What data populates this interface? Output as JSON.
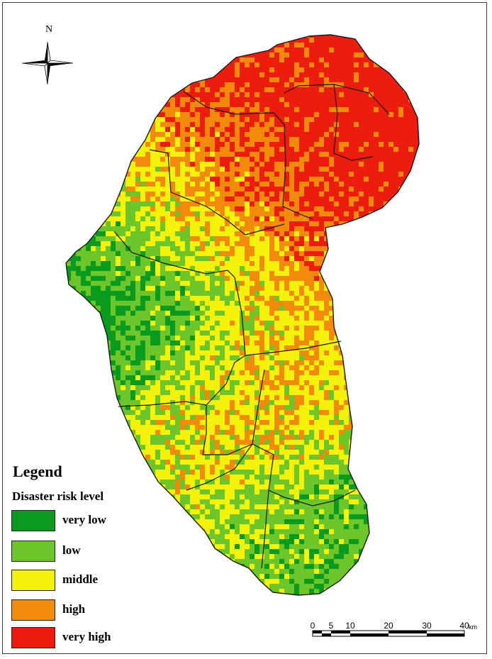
{
  "map": {
    "compass_label": "N",
    "legend": {
      "title": "Legend",
      "subtitle": "Disaster risk level",
      "items": [
        {
          "label": "very low",
          "color": "#0a9a1e"
        },
        {
          "label": "low",
          "color": "#6cc62a"
        },
        {
          "label": "middle",
          "color": "#f4f20a"
        },
        {
          "label": "high",
          "color": "#f28b0c"
        },
        {
          "label": "very high",
          "color": "#ec1d0e"
        }
      ]
    },
    "scale_bar": {
      "ticks": [
        "0",
        "5",
        "10",
        "20",
        "30",
        "40"
      ],
      "unit": "km"
    },
    "colors": {
      "very_low": "#0a9a1e",
      "low": "#6cc62a",
      "middle": "#f4f20a",
      "high": "#f28b0c",
      "very_high": "#ec1d0e",
      "boundary": "#1a1a1a"
    }
  }
}
